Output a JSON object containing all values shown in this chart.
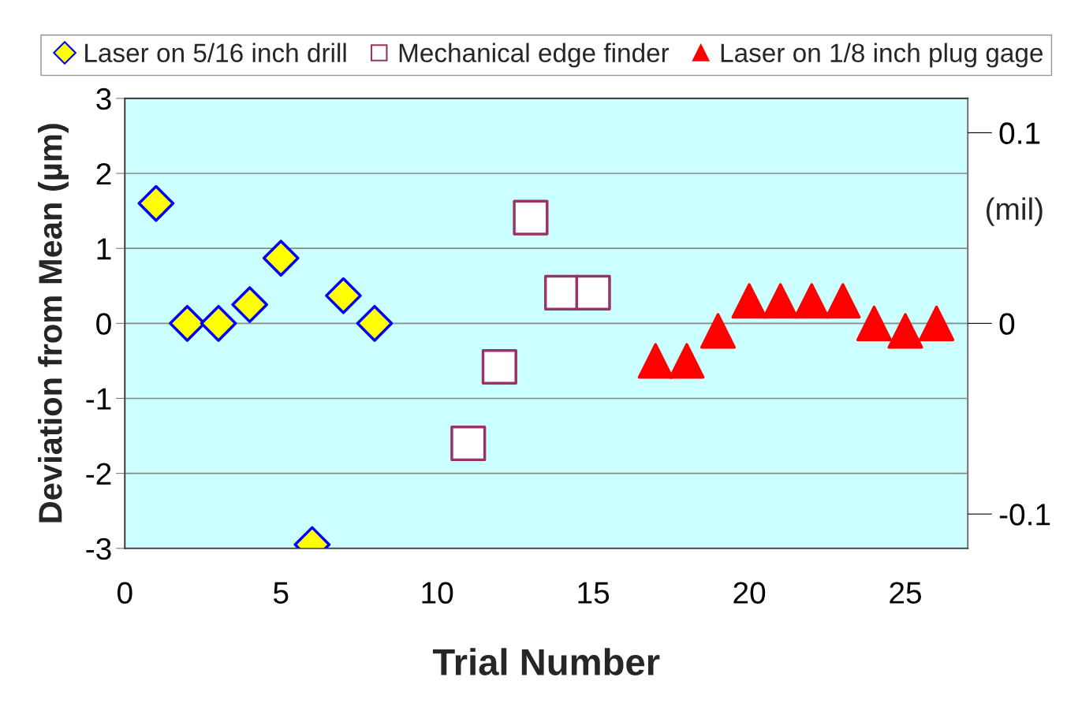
{
  "chart_data": {
    "type": "scatter",
    "xlabel": "Trial Number",
    "ylabel": "Deviation from Mean (µm)",
    "y2label": "(mil)",
    "xlim": [
      0,
      27
    ],
    "xticks": [
      0,
      5,
      10,
      15,
      20,
      25
    ],
    "ylim": [
      -3,
      3
    ],
    "yticks": [
      -3,
      -2,
      -1,
      0,
      1,
      2,
      3
    ],
    "y2lim": [
      -0.118,
      0.118
    ],
    "y2ticks": [
      -0.1,
      0,
      0.1
    ],
    "grid": "y",
    "legend": "top",
    "series": [
      {
        "name": "Laser on 5/16 inch drill",
        "color": "#ffff00",
        "marker": "diamond",
        "x": [
          1,
          2,
          3,
          4,
          5,
          6,
          7,
          8
        ],
        "values": [
          1.6,
          0.0,
          0.0,
          0.25,
          0.87,
          -2.95,
          0.37,
          0.0
        ]
      },
      {
        "name": "Mechanical edge finder",
        "color": "#ffffff",
        "marker": "square",
        "x": [
          11,
          12,
          13,
          14,
          15
        ],
        "values": [
          -1.6,
          -0.58,
          1.41,
          0.41,
          0.41
        ]
      },
      {
        "name": "Laser on 1/8 inch plug gage",
        "color": "#ff0000",
        "marker": "triangle",
        "x": [
          17,
          18,
          19,
          20,
          21,
          22,
          23,
          24,
          25,
          26
        ],
        "values": [
          -0.5,
          -0.5,
          -0.1,
          0.3,
          0.3,
          0.3,
          0.3,
          0.0,
          -0.1,
          0.0
        ]
      }
    ]
  }
}
